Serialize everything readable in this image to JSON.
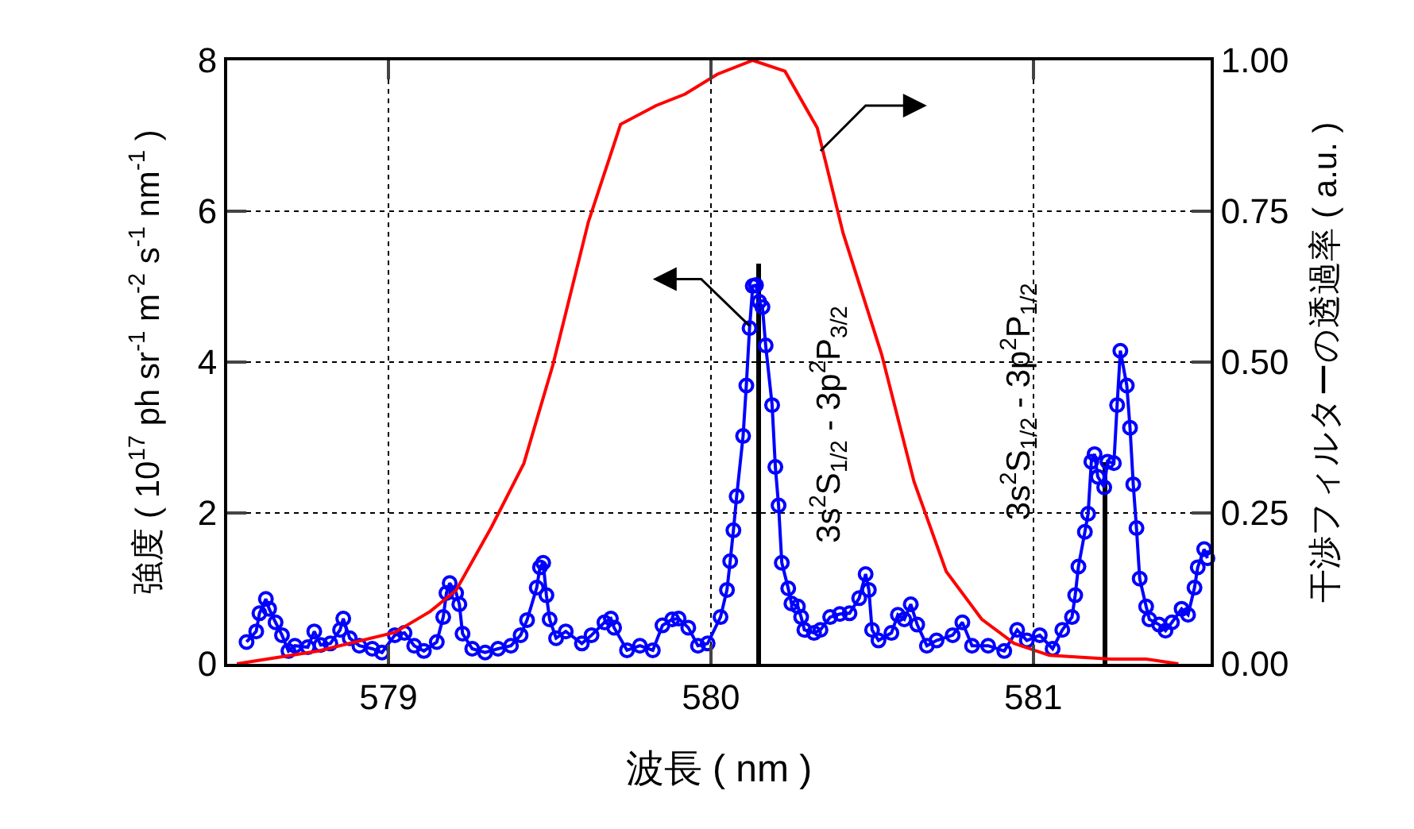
{
  "chart_data": {
    "type": "line",
    "xlabel": "波長 ( nm )",
    "ylabel": "強度 ( 10$^{17}$ ph sr$^{-1}$ m$^{-2}$ s$^{-1}$ nm$^{-1}$ )",
    "y2label": "干渉フィルターの透過率 ( a.u. )",
    "xlim": [
      578.5,
      581.55
    ],
    "xticks": [
      579,
      580,
      581
    ],
    "ylim": [
      0,
      8
    ],
    "yticks": [
      0,
      2,
      4,
      6,
      8
    ],
    "y2lim": [
      0,
      1
    ],
    "y2ticks": [
      {
        "value": 0,
        "label": "0.00"
      },
      {
        "value": 0.25,
        "label": "0.25"
      },
      {
        "value": 0.5,
        "label": "0.50"
      },
      {
        "value": 0.75,
        "label": "0.75"
      },
      {
        "value": 1,
        "label": "1.00"
      }
    ],
    "grid": true,
    "annotations": [
      "3s$^{2}$S$_{1/2}$ - 3p$^{2}$P$_{3/2}$",
      "3s$^{2}$S$_{1/2}$ - 3p$^{2}$P$_{1/2}$"
    ],
    "series": [
      {
        "color": "#ff0000",
        "axis": "y2",
        "marker": "none",
        "line_style": "solid",
        "x": [
          578.53,
          578.78,
          579.02,
          579.13,
          579.21,
          579.32,
          579.42,
          579.51,
          579.62,
          579.72,
          579.83,
          579.92,
          580.02,
          580.13,
          580.23,
          580.33,
          580.41,
          580.53,
          580.63,
          580.73,
          580.84,
          580.94,
          581.05,
          581.24,
          581.35,
          581.45
        ],
        "values": [
          0,
          0.021,
          0.052,
          0.087,
          0.122,
          0.227,
          0.332,
          0.495,
          0.732,
          0.894,
          0.925,
          0.944,
          0.977,
          1.0,
          0.982,
          0.888,
          0.714,
          0.512,
          0.302,
          0.153,
          0.074,
          0.034,
          0.014,
          0.008,
          0.008,
          0
        ]
      },
      {
        "type": "bar",
        "color": "#000000",
        "x": [
          580.15,
          581.22
        ],
        "values": [
          5.3,
          2.67
        ]
      },
      {
        "color": "#0000ff",
        "marker": "circle",
        "line_style": "solid",
        "x": [
          578.56,
          578.59,
          578.6,
          578.62,
          578.63,
          578.65,
          578.67,
          578.69,
          578.71,
          578.75,
          578.77,
          578.79,
          578.82,
          578.85,
          578.86,
          578.88,
          578.91,
          578.95,
          578.98,
          579.02,
          579.05,
          579.08,
          579.11,
          579.15,
          579.17,
          579.18,
          579.19,
          579.21,
          579.22,
          579.23,
          579.26,
          579.3,
          579.34,
          579.38,
          579.41,
          579.43,
          579.46,
          579.47,
          579.48,
          579.49,
          579.5,
          579.52,
          579.55,
          579.6,
          579.63,
          579.67,
          579.69,
          579.7,
          579.74,
          579.78,
          579.82,
          579.85,
          579.88,
          579.9,
          579.93,
          579.96,
          579.99,
          580.03,
          580.05,
          580.06,
          580.07,
          580.08,
          580.1,
          580.11,
          580.12,
          580.13,
          580.14,
          580.15,
          580.16,
          580.17,
          580.19,
          580.2,
          580.21,
          580.22,
          580.24,
          580.25,
          580.27,
          580.28,
          580.29,
          580.32,
          580.34,
          580.37,
          580.4,
          580.43,
          580.46,
          580.48,
          580.49,
          580.5,
          580.52,
          580.56,
          580.58,
          580.6,
          580.62,
          580.64,
          580.67,
          580.7,
          580.75,
          580.78,
          580.81,
          580.86,
          580.91,
          580.95,
          580.98,
          581.02,
          581.06,
          581.09,
          581.12,
          581.13,
          581.14,
          581.16,
          581.17,
          581.18,
          581.19,
          581.2,
          581.22,
          581.23,
          581.25,
          581.26,
          581.27,
          581.29,
          581.3,
          581.31,
          581.32,
          581.33,
          581.35,
          581.36,
          581.39,
          581.41,
          581.43,
          581.46,
          581.48,
          581.5,
          581.51,
          581.53,
          581.54
        ],
        "values": [
          0.29,
          0.43,
          0.67,
          0.86,
          0.73,
          0.55,
          0.38,
          0.17,
          0.24,
          0.22,
          0.43,
          0.25,
          0.27,
          0.45,
          0.6,
          0.34,
          0.24,
          0.2,
          0.15,
          0.38,
          0.41,
          0.24,
          0.17,
          0.29,
          0.62,
          0.94,
          1.07,
          0.94,
          0.79,
          0.4,
          0.2,
          0.15,
          0.2,
          0.24,
          0.38,
          0.58,
          1.01,
          1.28,
          1.34,
          0.91,
          0.59,
          0.34,
          0.43,
          0.27,
          0.38,
          0.55,
          0.6,
          0.48,
          0.18,
          0.24,
          0.18,
          0.51,
          0.59,
          0.6,
          0.48,
          0.24,
          0.27,
          0.62,
          0.98,
          1.36,
          1.77,
          2.22,
          3.02,
          3.69,
          4.45,
          5.01,
          5.02,
          4.8,
          4.73,
          4.22,
          3.43,
          2.61,
          2.1,
          1.34,
          1.0,
          0.8,
          0.76,
          0.62,
          0.45,
          0.41,
          0.45,
          0.62,
          0.66,
          0.67,
          0.87,
          1.19,
          0.98,
          0.45,
          0.31,
          0.41,
          0.65,
          0.59,
          0.79,
          0.52,
          0.24,
          0.31,
          0.38,
          0.55,
          0.24,
          0.24,
          0.17,
          0.45,
          0.31,
          0.38,
          0.2,
          0.45,
          0.62,
          0.91,
          1.29,
          1.75,
          1.99,
          2.68,
          2.78,
          2.48,
          2.34,
          2.68,
          2.66,
          3.43,
          4.15,
          3.69,
          3.13,
          2.38,
          1.8,
          1.13,
          0.76,
          0.59,
          0.52,
          0.44,
          0.55,
          0.73,
          0.65,
          1.01,
          1.28,
          1.52,
          1.4
        ]
      }
    ]
  }
}
